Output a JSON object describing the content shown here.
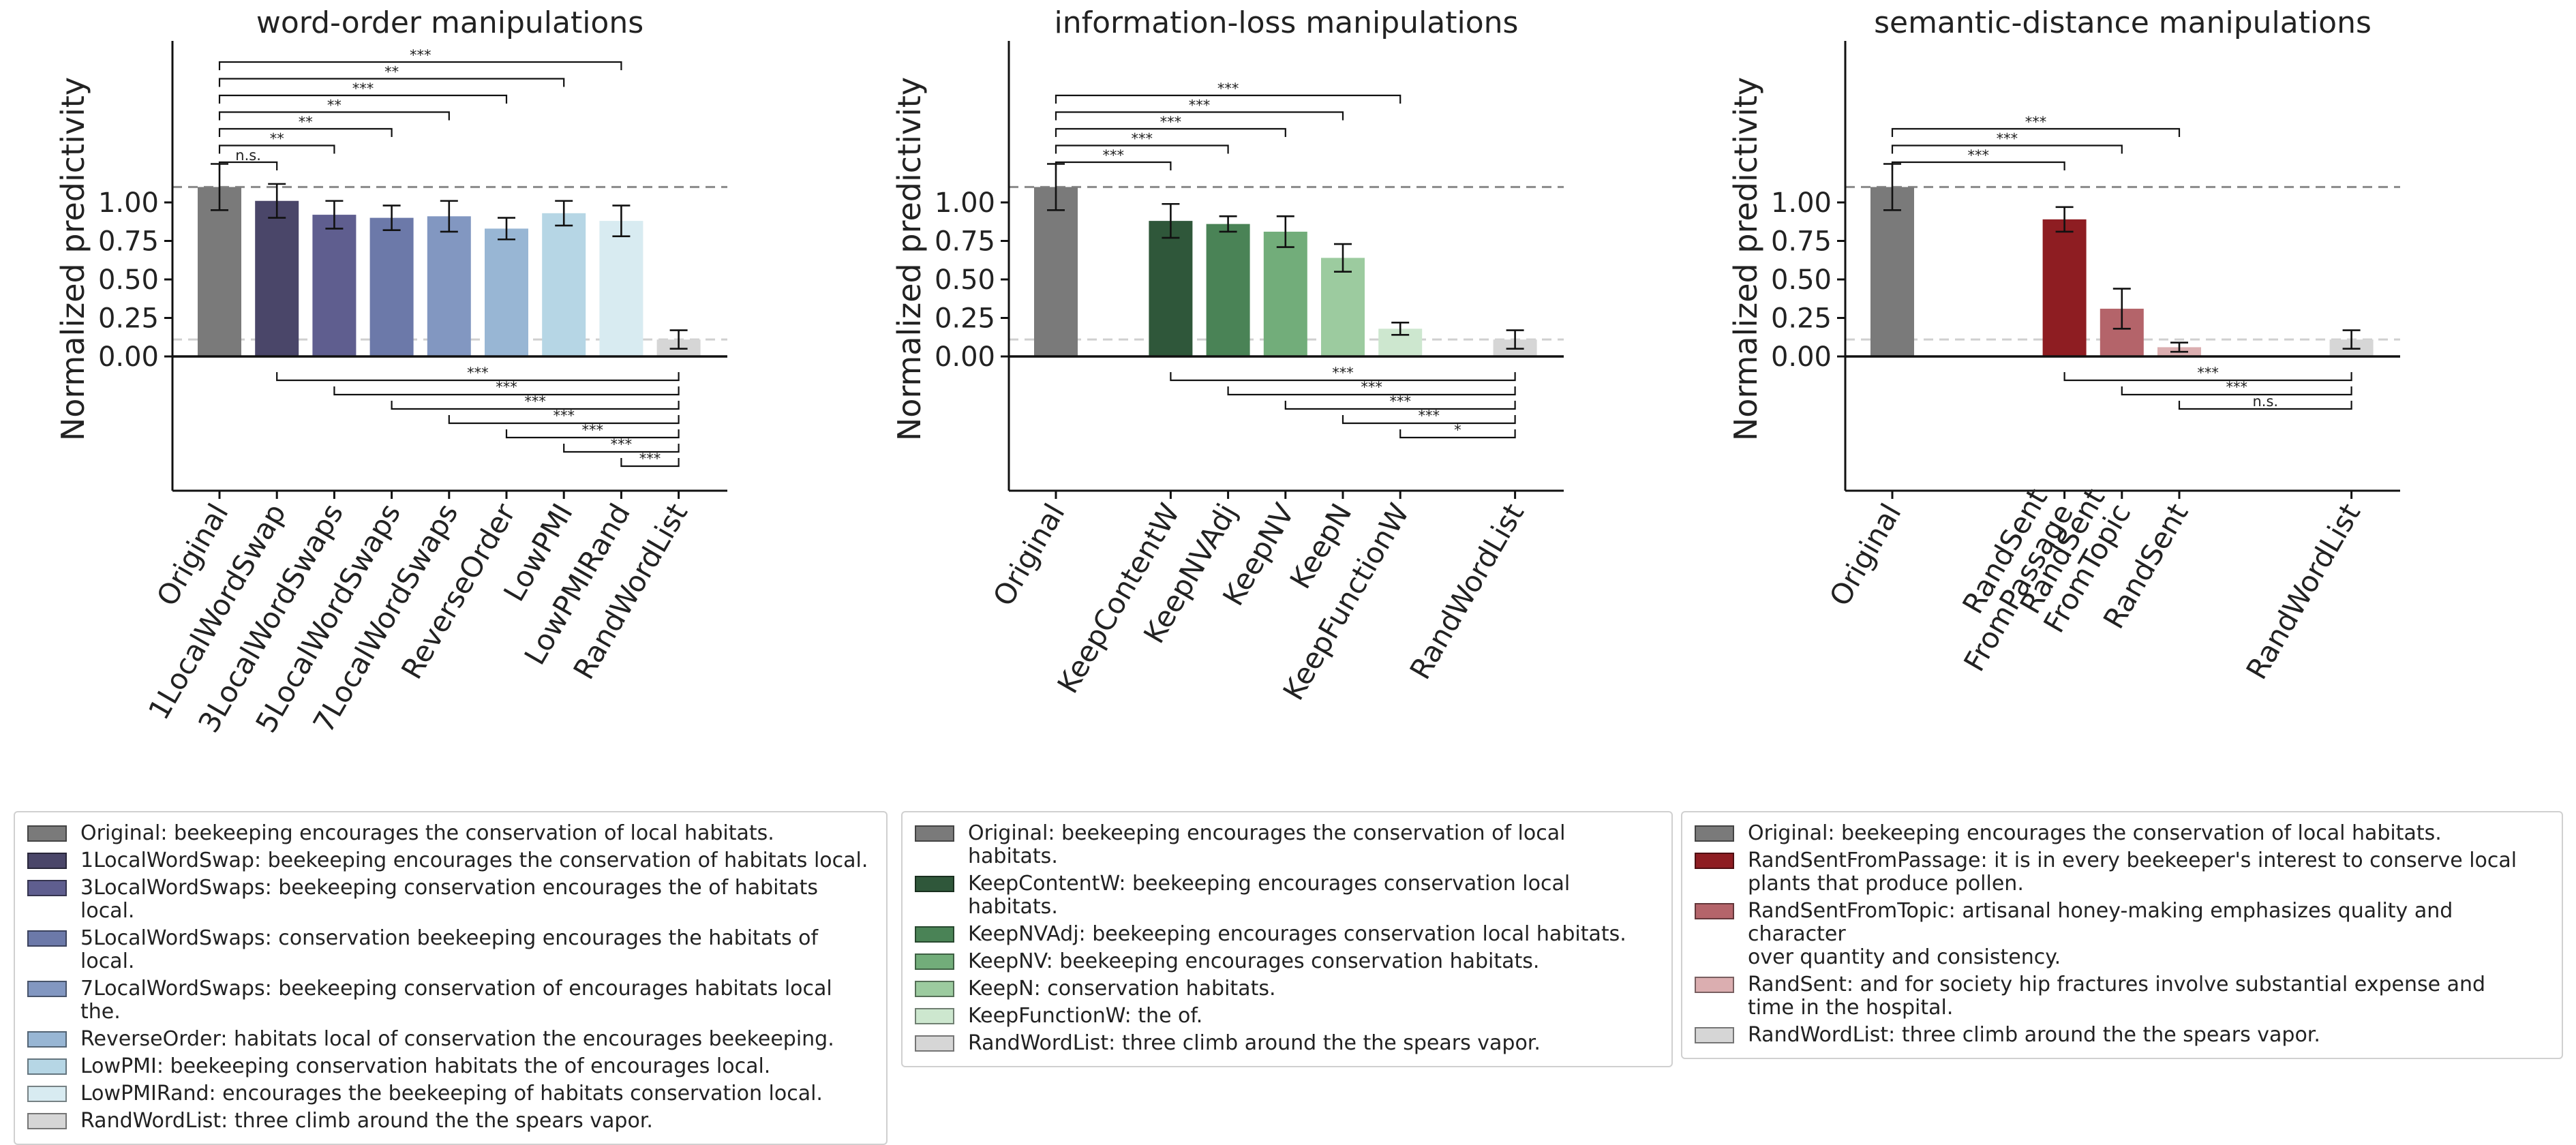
{
  "chart_data": [
    {
      "type": "bar",
      "title": "word-order manipulations",
      "ylabel": "Normalized predictivity",
      "ylim": [
        -0.9,
        2.1
      ],
      "yticks": [
        "0.00",
        "0.25",
        "0.50",
        "0.75",
        "1.00"
      ],
      "reference_lines": [
        1.1,
        0.11
      ],
      "categories": [
        "Original",
        "1LocalWordSwap",
        "3LocalWordSwaps",
        "5LocalWordSwaps",
        "7LocalWordSwaps",
        "ReverseOrder",
        "LowPMI",
        "LowPMIRand",
        "RandWordList"
      ],
      "tick_labels": [
        "Original",
        "1LocalWordSwap",
        "3LocalWordSwaps",
        "5LocalWordSwaps",
        "7LocalWordSwaps",
        "ReverseOrder",
        "LowPMI",
        "LowPMIRand",
        "RandWordList"
      ],
      "positions": [
        0,
        1,
        2,
        3,
        4,
        5,
        6,
        7,
        8
      ],
      "values": [
        1.1,
        1.01,
        0.92,
        0.9,
        0.91,
        0.83,
        0.93,
        0.88,
        0.11
      ],
      "errors": [
        0.15,
        0.11,
        0.09,
        0.08,
        0.1,
        0.07,
        0.08,
        0.1,
        0.06
      ],
      "colors": [
        "#7a7a7a",
        "#4a4669",
        "#5f5e8f",
        "#6c79a9",
        "#8297c1",
        "#98b6d4",
        "#b6d6e5",
        "#d8ebf1",
        "#d6d6d6"
      ],
      "sig_above": [
        {
          "from": 0,
          "to": 1,
          "label": "n.s."
        },
        {
          "from": 0,
          "to": 2,
          "label": "**"
        },
        {
          "from": 0,
          "to": 3,
          "label": "**"
        },
        {
          "from": 0,
          "to": 4,
          "label": "**"
        },
        {
          "from": 0,
          "to": 5,
          "label": "***"
        },
        {
          "from": 0,
          "to": 6,
          "label": "**"
        },
        {
          "from": 0,
          "to": 7,
          "label": "***"
        }
      ],
      "sig_below": [
        {
          "from": 1,
          "to": 8,
          "label": "***"
        },
        {
          "from": 2,
          "to": 8,
          "label": "***"
        },
        {
          "from": 3,
          "to": 8,
          "label": "***"
        },
        {
          "from": 4,
          "to": 8,
          "label": "***"
        },
        {
          "from": 5,
          "to": 8,
          "label": "***"
        },
        {
          "from": 6,
          "to": 8,
          "label": "***"
        },
        {
          "from": 7,
          "to": 8,
          "label": "***"
        }
      ]
    },
    {
      "type": "bar",
      "title": "information-loss manipulations",
      "ylabel": "Normalized predictivity",
      "ylim": [
        -0.9,
        2.1
      ],
      "yticks": [
        "0.00",
        "0.25",
        "0.50",
        "0.75",
        "1.00"
      ],
      "reference_lines": [
        1.1,
        0.11
      ],
      "categories": [
        "Original",
        "KeepContentW",
        "KeepNVAdj",
        "KeepNV",
        "KeepN",
        "KeepFunctionW",
        "RandWordList"
      ],
      "tick_labels": [
        "Original",
        "KeepContentW",
        "KeepNVAdj",
        "KeepNV",
        "KeepN",
        "KeepFunctionW",
        "RandWordList"
      ],
      "positions": [
        0,
        2,
        3,
        4,
        5,
        6,
        8
      ],
      "values": [
        1.1,
        0.88,
        0.86,
        0.81,
        0.64,
        0.18,
        0.11
      ],
      "errors": [
        0.15,
        0.11,
        0.05,
        0.1,
        0.09,
        0.04,
        0.06
      ],
      "colors": [
        "#7a7a7a",
        "#2f573a",
        "#4a8356",
        "#72ad7a",
        "#9ccb9f",
        "#cde7cf",
        "#d6d6d6"
      ],
      "sig_above": [
        {
          "from": 0,
          "to": 2,
          "label": "***"
        },
        {
          "from": 0,
          "to": 3,
          "label": "***"
        },
        {
          "from": 0,
          "to": 4,
          "label": "***"
        },
        {
          "from": 0,
          "to": 5,
          "label": "***"
        },
        {
          "from": 0,
          "to": 6,
          "label": "***"
        }
      ],
      "sig_below": [
        {
          "from": 2,
          "to": 8,
          "label": "***"
        },
        {
          "from": 3,
          "to": 8,
          "label": "***"
        },
        {
          "from": 4,
          "to": 8,
          "label": "***"
        },
        {
          "from": 5,
          "to": 8,
          "label": "***"
        },
        {
          "from": 6,
          "to": 8,
          "label": "*"
        }
      ]
    },
    {
      "type": "bar",
      "title": "semantic-distance manipulations",
      "ylabel": "Normalized predictivity",
      "ylim": [
        -0.9,
        2.1
      ],
      "yticks": [
        "0.00",
        "0.25",
        "0.50",
        "0.75",
        "1.00"
      ],
      "reference_lines": [
        1.1,
        0.11
      ],
      "categories": [
        "Original",
        "RandSentFromPassage",
        "RandSentFromTopic",
        "RandSent",
        "RandWordList"
      ],
      "tick_labels": [
        "Original",
        "RandSent\nFromPassage",
        "RandSent\nFromTopic",
        "RandSent",
        "RandWordList"
      ],
      "positions": [
        0,
        3,
        4,
        5,
        8
      ],
      "values": [
        1.1,
        0.89,
        0.31,
        0.06,
        0.11
      ],
      "errors": [
        0.15,
        0.08,
        0.13,
        0.03,
        0.06
      ],
      "colors": [
        "#7a7a7a",
        "#8e1d22",
        "#b4646a",
        "#dbaeb0",
        "#d6d6d6"
      ],
      "sig_above": [
        {
          "from": 0,
          "to": 3,
          "label": "***"
        },
        {
          "from": 0,
          "to": 4,
          "label": "***"
        },
        {
          "from": 0,
          "to": 5,
          "label": "***"
        }
      ],
      "sig_below": [
        {
          "from": 3,
          "to": 8,
          "label": "***"
        },
        {
          "from": 4,
          "to": 8,
          "label": "***"
        },
        {
          "from": 5,
          "to": 8,
          "label": "n.s."
        }
      ]
    }
  ],
  "legends": [
    {
      "items": [
        {
          "label": "Original: beekeeping encourages the conservation of local habitats.",
          "color": "#7a7a7a"
        },
        {
          "label": "1LocalWordSwap: beekeeping encourages the conservation of habitats local.",
          "color": "#4a4669"
        },
        {
          "label": "3LocalWordSwaps: beekeeping conservation encourages the of habitats local.",
          "color": "#5f5e8f"
        },
        {
          "label": "5LocalWordSwaps: conservation beekeeping encourages the habitats of local.",
          "color": "#6c79a9"
        },
        {
          "label": "7LocalWordSwaps: beekeeping conservation of encourages habitats local the.",
          "color": "#8297c1"
        },
        {
          "label": "ReverseOrder: habitats local of conservation the encourages beekeeping.",
          "color": "#98b6d4"
        },
        {
          "label": "LowPMI: beekeeping conservation habitats the of encourages local.",
          "color": "#b6d6e5"
        },
        {
          "label": "LowPMIRand: encourages the beekeeping of habitats conservation local.",
          "color": "#d8ebf1"
        },
        {
          "label": "RandWordList: three climb around the the spears vapor.",
          "color": "#d6d6d6"
        }
      ]
    },
    {
      "items": [
        {
          "label": "Original: beekeeping encourages the conservation of local habitats.",
          "color": "#7a7a7a"
        },
        {
          "label": "KeepContentW: beekeeping encourages conservation local habitats.",
          "color": "#2f573a"
        },
        {
          "label": "KeepNVAdj: beekeeping encourages conservation local habitats.",
          "color": "#4a8356"
        },
        {
          "label": "KeepNV: beekeeping encourages conservation habitats.",
          "color": "#72ad7a"
        },
        {
          "label": "KeepN: conservation habitats.",
          "color": "#9ccb9f"
        },
        {
          "label": "KeepFunctionW: the of.",
          "color": "#cde7cf"
        },
        {
          "label": "RandWordList: three climb around the the spears vapor.",
          "color": "#d6d6d6"
        }
      ]
    },
    {
      "items": [
        {
          "label": "Original: beekeeping encourages the conservation of local habitats.",
          "color": "#7a7a7a"
        },
        {
          "label": "RandSentFromPassage: it is in every beekeeper's interest to conserve local\nplants that produce pollen.",
          "color": "#8e1d22"
        },
        {
          "label": "RandSentFromTopic: artisanal honey-making emphasizes quality and character\nover quantity and consistency.",
          "color": "#b4646a"
        },
        {
          "label": "RandSent: and for society hip fractures involve substantial expense and\ntime in the hospital.",
          "color": "#dbaeb0"
        },
        {
          "label": "RandWordList: three climb around the the spears vapor.",
          "color": "#d6d6d6"
        }
      ]
    }
  ]
}
